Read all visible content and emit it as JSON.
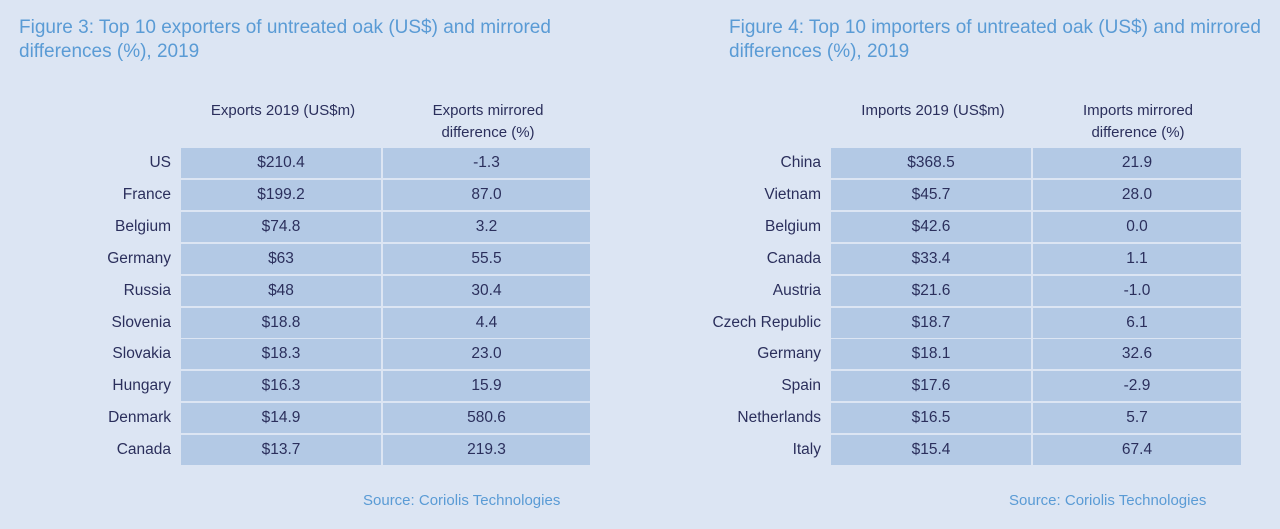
{
  "exports": {
    "title": "Figure 3: Top 10 exporters of untreated oak (US$) and mirrored differences (%), 2019",
    "col1": "Exports 2019 (US$m)",
    "col2": "Exports mirrored difference (%)",
    "rows": [
      {
        "country": "US",
        "value": "$210.4",
        "diff": "-1.3"
      },
      {
        "country": "France",
        "value": "$199.2",
        "diff": "87.0"
      },
      {
        "country": "Belgium",
        "value": "$74.8",
        "diff": "3.2"
      },
      {
        "country": "Germany",
        "value": "$63",
        "diff": "55.5"
      },
      {
        "country": "Russia",
        "value": "$48",
        "diff": "30.4"
      },
      {
        "country": "Slovenia",
        "value": "$18.8",
        "diff": "4.4"
      },
      {
        "country": "Slovakia",
        "value": "$18.3",
        "diff": "23.0"
      },
      {
        "country": "Hungary",
        "value": "$16.3",
        "diff": "15.9"
      },
      {
        "country": "Denmark",
        "value": "$14.9",
        "diff": "580.6"
      },
      {
        "country": "Canada",
        "value": "$13.7",
        "diff": "219.3"
      }
    ],
    "source": "Source: Coriolis Technologies"
  },
  "imports": {
    "title": "Figure 4: Top 10 importers of untreated oak (US$) and mirrored differences (%), 2019",
    "col1": "Imports 2019 (US$m)",
    "col2": "Imports mirrored difference (%)",
    "rows": [
      {
        "country": "China",
        "value": "$368.5",
        "diff": "21.9"
      },
      {
        "country": "Vietnam",
        "value": "$45.7",
        "diff": "28.0"
      },
      {
        "country": "Belgium",
        "value": "$42.6",
        "diff": "0.0"
      },
      {
        "country": "Canada",
        "value": "$33.4",
        "diff": "1.1"
      },
      {
        "country": "Austria",
        "value": "$21.6",
        "diff": "-1.0"
      },
      {
        "country": "Czech Republic",
        "value": "$18.7",
        "diff": "6.1"
      },
      {
        "country": "Germany",
        "value": "$18.1",
        "diff": "32.6"
      },
      {
        "country": "Spain",
        "value": "$17.6",
        "diff": "-2.9"
      },
      {
        "country": "Netherlands",
        "value": "$16.5",
        "diff": "5.7"
      },
      {
        "country": "Italy",
        "value": "$15.4",
        "diff": "67.4"
      }
    ],
    "source": "Source: Coriolis Technologies"
  }
}
